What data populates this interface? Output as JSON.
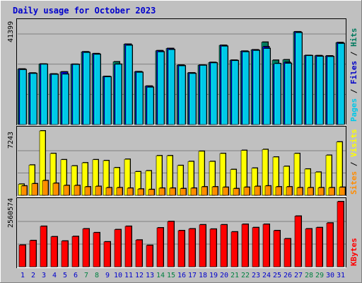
{
  "title": "Daily usage for October 2023",
  "colors": {
    "bg": "#c0c0c0",
    "title": "#0000cc",
    "hits": "#007a5e",
    "files": "#0000c8",
    "pages": "#00c8e8",
    "visits": "#ffff00",
    "sites": "#ff8c00",
    "kbytes": "#ff0000",
    "weekday_label": "#0000cc",
    "weekend_label": "#008040"
  },
  "chart_data": [
    {
      "type": "bar",
      "panel": "top",
      "max_label": "41399",
      "ymax": 41399,
      "legend": [
        "Pages",
        "Files",
        "Hits"
      ],
      "categories": [
        "1",
        "2",
        "3",
        "4",
        "5",
        "6",
        "7",
        "8",
        "9",
        "10",
        "11",
        "12",
        "13",
        "14",
        "15",
        "16",
        "17",
        "18",
        "19",
        "20",
        "21",
        "22",
        "23",
        "24",
        "25",
        "26",
        "27",
        "28",
        "29",
        "30",
        "31"
      ],
      "series": [
        {
          "name": "Hits",
          "values": [
            24600,
            22800,
            26800,
            22400,
            23300,
            26700,
            32200,
            31400,
            21300,
            27800,
            35600,
            23400,
            17000,
            32700,
            33700,
            26300,
            22900,
            26300,
            27500,
            35100,
            28500,
            32500,
            33100,
            36500,
            28500,
            28700,
            41100,
            30600,
            30500,
            30400,
            36300
          ]
        },
        {
          "name": "Files",
          "values": [
            24600,
            22800,
            26800,
            22400,
            23300,
            26700,
            32200,
            31400,
            21300,
            26700,
            35600,
            23400,
            17000,
            32700,
            33700,
            26300,
            22900,
            26300,
            27500,
            35100,
            28500,
            32500,
            33100,
            34500,
            26800,
            27600,
            41100,
            30600,
            30500,
            30400,
            36300
          ]
        },
        {
          "name": "Pages",
          "values": [
            24300,
            22600,
            26700,
            22200,
            22300,
            26600,
            31900,
            31100,
            21100,
            26700,
            35100,
            23100,
            16500,
            32200,
            33200,
            26000,
            22600,
            26200,
            27300,
            34700,
            28300,
            32200,
            32800,
            33700,
            27000,
            27100,
            40700,
            30500,
            30200,
            30100,
            35900
          ]
        }
      ]
    },
    {
      "type": "bar",
      "panel": "middle",
      "max_label": "7243",
      "ymax": 7243,
      "legend": [
        "Sites",
        "Visits"
      ],
      "categories": [
        "1",
        "2",
        "3",
        "4",
        "5",
        "6",
        "7",
        "8",
        "9",
        "10",
        "11",
        "12",
        "13",
        "14",
        "15",
        "16",
        "17",
        "18",
        "19",
        "20",
        "21",
        "22",
        "23",
        "24",
        "25",
        "26",
        "27",
        "28",
        "29",
        "30",
        "31"
      ],
      "series": [
        {
          "name": "Visits",
          "values": [
            1250,
            3400,
            7243,
            4700,
            4000,
            3300,
            3650,
            4000,
            3900,
            3100,
            4050,
            2650,
            2750,
            4450,
            4450,
            3350,
            3800,
            4950,
            3800,
            4700,
            2900,
            5050,
            3050,
            5150,
            4300,
            3250,
            4700,
            2950,
            2600,
            4500,
            6000
          ]
        },
        {
          "name": "Sites",
          "values": [
            1050,
            1300,
            1650,
            1350,
            1100,
            1100,
            950,
            1000,
            850,
            850,
            800,
            700,
            650,
            800,
            800,
            750,
            800,
            950,
            950,
            900,
            750,
            900,
            1000,
            1050,
            950,
            950,
            850,
            850,
            850,
            850,
            900
          ]
        }
      ]
    },
    {
      "type": "bar",
      "panel": "bottom",
      "max_label": "2560574",
      "ymax": 2560574,
      "legend": [
        "KBytes"
      ],
      "categories": [
        "1",
        "2",
        "3",
        "4",
        "5",
        "6",
        "7",
        "8",
        "9",
        "10",
        "11",
        "12",
        "13",
        "14",
        "15",
        "16",
        "17",
        "18",
        "19",
        "20",
        "21",
        "22",
        "23",
        "24",
        "25",
        "26",
        "27",
        "28",
        "29",
        "30",
        "31"
      ],
      "series": [
        {
          "name": "KBytes",
          "values": [
            850000,
            1030000,
            1590000,
            1180000,
            1010000,
            1190000,
            1490000,
            1340000,
            980000,
            1460000,
            1590000,
            1050000,
            840000,
            1530000,
            1780000,
            1420000,
            1490000,
            1650000,
            1480000,
            1650000,
            1370000,
            1670000,
            1540000,
            1670000,
            1420000,
            1100000,
            1990000,
            1490000,
            1540000,
            1720000,
            2560574
          ]
        }
      ]
    }
  ],
  "days": [
    {
      "label": "1",
      "weekend": false
    },
    {
      "label": "2",
      "weekend": false
    },
    {
      "label": "3",
      "weekend": false
    },
    {
      "label": "4",
      "weekend": false
    },
    {
      "label": "5",
      "weekend": false
    },
    {
      "label": "6",
      "weekend": false
    },
    {
      "label": "7",
      "weekend": true
    },
    {
      "label": "8",
      "weekend": true
    },
    {
      "label": "9",
      "weekend": false
    },
    {
      "label": "10",
      "weekend": false
    },
    {
      "label": "11",
      "weekend": false
    },
    {
      "label": "12",
      "weekend": false
    },
    {
      "label": "13",
      "weekend": false
    },
    {
      "label": "14",
      "weekend": true
    },
    {
      "label": "15",
      "weekend": true
    },
    {
      "label": "16",
      "weekend": false
    },
    {
      "label": "17",
      "weekend": false
    },
    {
      "label": "18",
      "weekend": false
    },
    {
      "label": "19",
      "weekend": false
    },
    {
      "label": "20",
      "weekend": false
    },
    {
      "label": "21",
      "weekend": true
    },
    {
      "label": "22",
      "weekend": true
    },
    {
      "label": "23",
      "weekend": false
    },
    {
      "label": "24",
      "weekend": false
    },
    {
      "label": "25",
      "weekend": false
    },
    {
      "label": "26",
      "weekend": false
    },
    {
      "label": "27",
      "weekend": false
    },
    {
      "label": "28",
      "weekend": true
    },
    {
      "label": "29",
      "weekend": true
    },
    {
      "label": "30",
      "weekend": false
    },
    {
      "label": "31",
      "weekend": false
    }
  ]
}
